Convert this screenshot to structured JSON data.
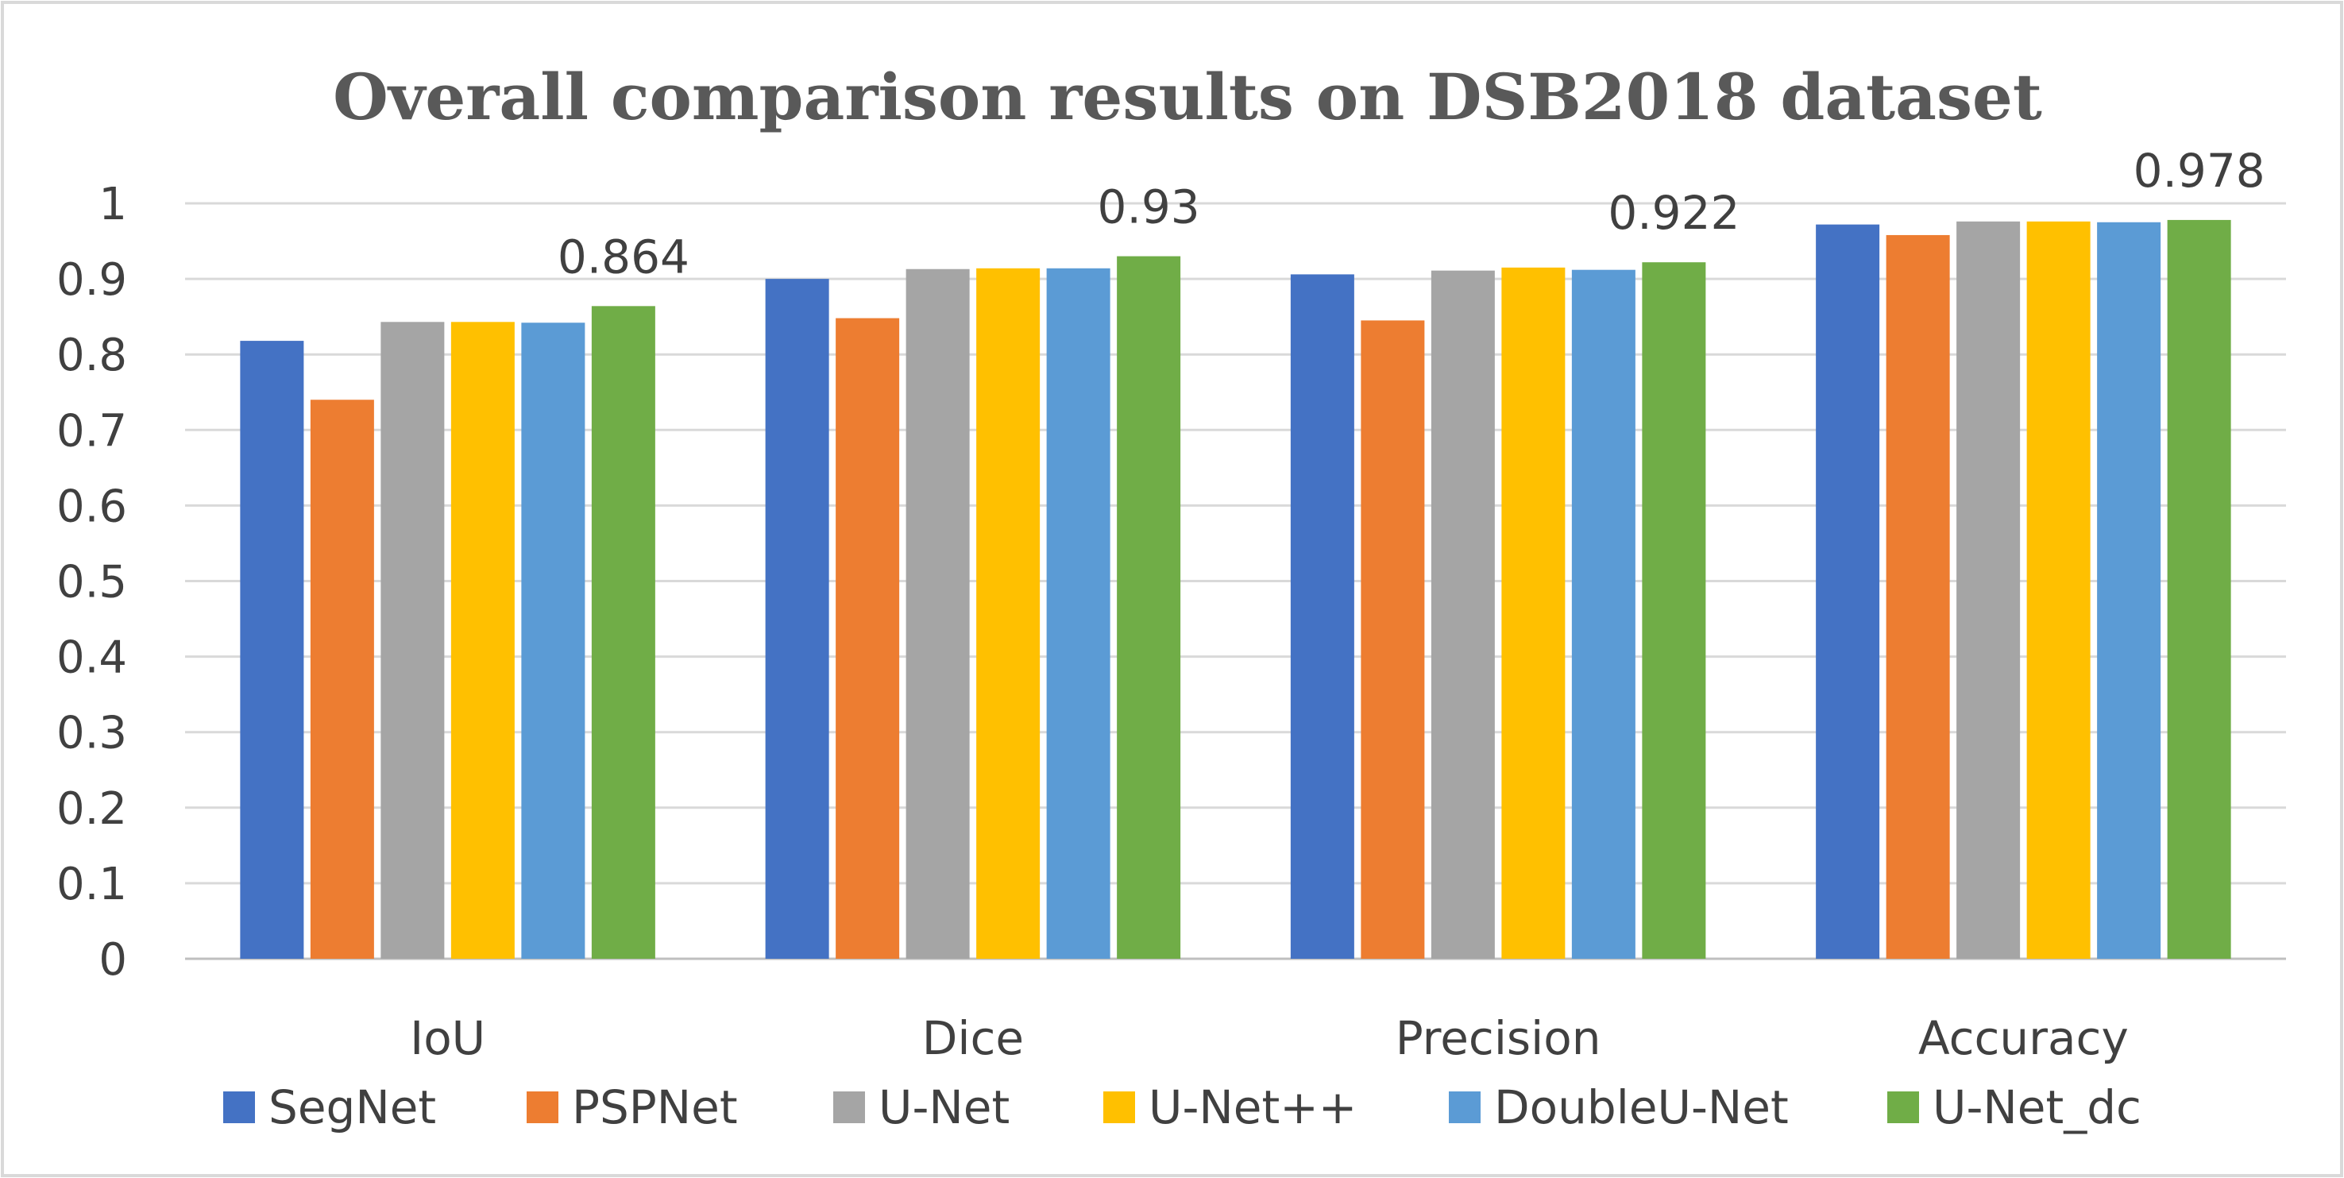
{
  "chart_data": {
    "type": "bar",
    "title": "Overall comparison results on DSB2018 dataset",
    "xlabel": "",
    "ylabel": "",
    "ylim": [
      0,
      1
    ],
    "yticks": [
      0,
      0.1,
      0.2,
      0.3,
      0.4,
      0.5,
      0.6,
      0.7,
      0.8,
      0.9,
      1
    ],
    "ytick_labels": [
      "0",
      "0.1",
      "0.2",
      "0.3",
      "0.4",
      "0.5",
      "0.6",
      "0.7",
      "0.8",
      "0.9",
      "1"
    ],
    "grid": true,
    "legend_position": "bottom",
    "categories": [
      "IoU",
      "Dice",
      "Precision",
      "Accuracy"
    ],
    "series": [
      {
        "name": "SegNet",
        "color": "#4472C4",
        "values": [
          0.818,
          0.9,
          0.906,
          0.972
        ]
      },
      {
        "name": "PSPNet",
        "color": "#ED7D31",
        "values": [
          0.74,
          0.848,
          0.845,
          0.958
        ]
      },
      {
        "name": "U-Net",
        "color": "#A5A5A5",
        "values": [
          0.843,
          0.913,
          0.911,
          0.976
        ]
      },
      {
        "name": "U-Net++",
        "color": "#FFC000",
        "values": [
          0.843,
          0.914,
          0.915,
          0.976
        ]
      },
      {
        "name": "DoubleU-Net",
        "color": "#5B9BD5",
        "values": [
          0.842,
          0.914,
          0.912,
          0.975
        ]
      },
      {
        "name": "U-Net_dc",
        "color": "#70AD47",
        "values": [
          0.864,
          0.93,
          0.922,
          0.978
        ]
      }
    ],
    "data_labels": [
      {
        "series": "U-Net_dc",
        "category": "IoU",
        "text": "0.864"
      },
      {
        "series": "U-Net_dc",
        "category": "Dice",
        "text": "0.93"
      },
      {
        "series": "U-Net_dc",
        "category": "Precision",
        "text": "0.922"
      },
      {
        "series": "U-Net_dc",
        "category": "Accuracy",
        "text": "0.978"
      }
    ]
  }
}
